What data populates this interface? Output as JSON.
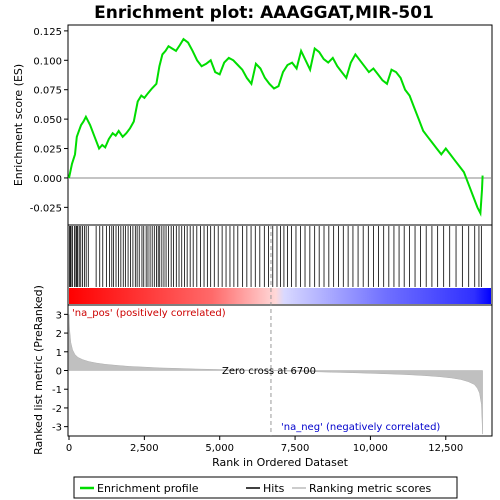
{
  "chart_data": {
    "type": "line",
    "title": "Enrichment plot: AAAGGAT,MIR-501",
    "top_panel": {
      "ylabel": "Enrichment score (ES)",
      "ylim": [
        -0.04,
        0.13
      ],
      "yticks": [
        "0.125",
        "0.100",
        "0.075",
        "0.050",
        "0.025",
        "0.000",
        "-0.025"
      ],
      "ytick_values": [
        0.125,
        0.1,
        0.075,
        0.05,
        0.025,
        0.0,
        -0.025
      ],
      "series": [
        {
          "name": "Enrichment profile",
          "color": "#00dd00",
          "x": [
            0,
            100,
            200,
            260,
            330,
            400,
            480,
            560,
            700,
            850,
            1000,
            1100,
            1200,
            1320,
            1450,
            1550,
            1650,
            1780,
            1900,
            2020,
            2150,
            2280,
            2400,
            2500,
            2620,
            2750,
            2900,
            3000,
            3100,
            3200,
            3300,
            3420,
            3550,
            3680,
            3800,
            3950,
            4100,
            4250,
            4400,
            4550,
            4700,
            4850,
            5000,
            5150,
            5300,
            5450,
            5600,
            5750,
            5900,
            6050,
            6200,
            6350,
            6500,
            6650,
            6800,
            6950,
            7100,
            7250,
            7400,
            7550,
            7700,
            7850,
            8000,
            8150,
            8300,
            8450,
            8600,
            8750,
            8900,
            9050,
            9200,
            9350,
            9500,
            9650,
            9800,
            9950,
            10100,
            10250,
            10400,
            10550,
            10700,
            10850,
            11000,
            11150,
            11300,
            11450,
            11600,
            11750,
            11900,
            12050,
            12200,
            12350,
            12500,
            12650,
            12800,
            12950,
            13100,
            13250,
            13400,
            13550,
            13650,
            13700,
            13720
          ],
          "values": [
            0.0,
            0.012,
            0.02,
            0.035,
            0.04,
            0.045,
            0.048,
            0.052,
            0.045,
            0.035,
            0.025,
            0.028,
            0.026,
            0.033,
            0.038,
            0.036,
            0.04,
            0.035,
            0.038,
            0.042,
            0.048,
            0.065,
            0.07,
            0.068,
            0.072,
            0.076,
            0.08,
            0.095,
            0.105,
            0.108,
            0.112,
            0.11,
            0.108,
            0.113,
            0.118,
            0.115,
            0.108,
            0.1,
            0.095,
            0.097,
            0.1,
            0.09,
            0.088,
            0.098,
            0.102,
            0.1,
            0.096,
            0.092,
            0.085,
            0.08,
            0.097,
            0.093,
            0.085,
            0.08,
            0.076,
            0.078,
            0.09,
            0.096,
            0.098,
            0.093,
            0.108,
            0.1,
            0.092,
            0.11,
            0.107,
            0.101,
            0.098,
            0.102,
            0.095,
            0.09,
            0.085,
            0.098,
            0.105,
            0.1,
            0.095,
            0.09,
            0.093,
            0.088,
            0.083,
            0.08,
            0.092,
            0.09,
            0.085,
            0.075,
            0.07,
            0.06,
            0.05,
            0.04,
            0.035,
            0.03,
            0.025,
            0.02,
            0.025,
            0.02,
            0.015,
            0.01,
            0.005,
            -0.005,
            -0.015,
            -0.025,
            -0.03,
            -0.01,
            0.002
          ]
        }
      ]
    },
    "hits": {
      "name": "Hits",
      "positions": [
        20,
        45,
        70,
        120,
        180,
        230,
        260,
        290,
        340,
        390,
        450,
        510,
        570,
        640,
        900,
        1020,
        1120,
        1240,
        1340,
        1420,
        1480,
        1560,
        1640,
        1720,
        1800,
        1870,
        1960,
        2040,
        2120,
        2200,
        2260,
        2330,
        2420,
        2480,
        2560,
        2620,
        2690,
        2760,
        2830,
        2900,
        2960,
        3010,
        3080,
        3150,
        3220,
        3300,
        3390,
        3470,
        3560,
        3650,
        3740,
        3830,
        3920,
        4020,
        4120,
        4240,
        4360,
        4480,
        4590,
        4700,
        4820,
        4950,
        5080,
        5210,
        5340,
        5470,
        5600,
        5760,
        5900,
        6040,
        6180,
        6330,
        6480,
        6620,
        6760,
        6900,
        7020,
        7130,
        7250,
        7380,
        7530,
        7680,
        7830,
        7990,
        8150,
        8300,
        8460,
        8620,
        8780,
        8940,
        9100,
        9260,
        9420,
        9590,
        9760,
        9930,
        10100,
        10270,
        10440,
        10610,
        10780,
        10950,
        11120,
        11300,
        11480,
        11660,
        11850,
        12040,
        12230,
        12430,
        12630,
        12840,
        13050,
        13260,
        13460,
        13600,
        13680
      ]
    },
    "ranking": {
      "name": "Ranking metric scores",
      "ylabel": "Ranked list metric (PreRanked)",
      "xlabel": "Rank in Ordered Dataset",
      "xlim": [
        0,
        14000
      ],
      "xticks": [
        "0",
        "2,500",
        "5,000",
        "7,500",
        "10,000",
        "12,500"
      ],
      "xtick_values": [
        0,
        2500,
        5000,
        7500,
        10000,
        12500
      ],
      "ylim": [
        -3.5,
        3.5
      ],
      "yticks": [
        "3",
        "2",
        "1",
        "0",
        "-1",
        "-2",
        "-3"
      ],
      "ytick_values": [
        3,
        2,
        1,
        0,
        -1,
        -2,
        -3
      ],
      "x": [
        0,
        20,
        60,
        120,
        200,
        300,
        450,
        650,
        900,
        1200,
        1600,
        2000,
        2500,
        3000,
        3600,
        4200,
        4800,
        5400,
        6000,
        6700,
        7300,
        8000,
        8700,
        9400,
        10000,
        10600,
        11200,
        11800,
        12300,
        12700,
        13000,
        13250,
        13450,
        13550,
        13620,
        13680,
        13720
      ],
      "values": [
        3.0,
        2.2,
        1.5,
        1.1,
        0.85,
        0.7,
        0.58,
        0.48,
        0.4,
        0.33,
        0.27,
        0.22,
        0.18,
        0.14,
        0.11,
        0.08,
        0.06,
        0.04,
        0.02,
        0.0,
        -0.03,
        -0.06,
        -0.09,
        -0.12,
        -0.15,
        -0.18,
        -0.22,
        -0.27,
        -0.33,
        -0.4,
        -0.48,
        -0.6,
        -0.75,
        -0.95,
        -1.2,
        -1.8,
        -3.4
      ],
      "zero_cross_label": "Zero cross at 6700",
      "zero_cross": 6700,
      "pos_label": "'na_pos' (positively correlated)",
      "neg_label": "'na_neg' (negatively correlated)"
    },
    "legend": {
      "placement": "bottom",
      "entries": [
        {
          "label": "Enrichment profile",
          "color": "#00dd00"
        },
        {
          "label": "Hits",
          "color": "#000000"
        },
        {
          "label": "Ranking metric scores",
          "color": "#bbbbbb"
        }
      ]
    },
    "colors": {
      "pos": "#ff0000",
      "neg": "#0000ff",
      "pos_text": "#cc0000",
      "neg_text": "#0000cc"
    }
  }
}
